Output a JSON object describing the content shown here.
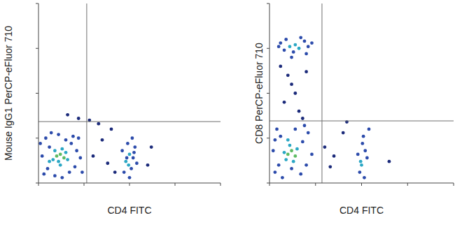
{
  "chart_data": [
    {
      "type": "scatter",
      "x_label": "CD4 FITC",
      "y_label": "Mouse IgG1 PerCP-eFluor 710",
      "xlim": [
        0,
        1000
      ],
      "ylim": [
        0,
        1000
      ],
      "xticks": [
        0,
        250,
        500,
        750,
        1000
      ],
      "yticks": [
        0,
        250,
        500,
        750,
        1000
      ],
      "tick_labels": false,
      "grid": false,
      "marker": "dot",
      "gate_x": 265,
      "gate_y": 342,
      "x": [
        100,
        120,
        140,
        110,
        90,
        130,
        150,
        80,
        120,
        160,
        30,
        50,
        60,
        40,
        70,
        180,
        200,
        210,
        190,
        20,
        170,
        90,
        130,
        230,
        240,
        60,
        150,
        110,
        220,
        10,
        480,
        500,
        510,
        490,
        520,
        470,
        530,
        500,
        540,
        460,
        515,
        495,
        525,
        485,
        300,
        350,
        400,
        330,
        380,
        600,
        620,
        420,
        280,
        220,
        160
      ],
      "values": [
        150,
        160,
        140,
        120,
        180,
        190,
        170,
        130,
        100,
        130,
        50,
        80,
        200,
        250,
        280,
        220,
        90,
        180,
        260,
        150,
        60,
        40,
        30,
        140,
        60,
        120,
        240,
        270,
        250,
        220,
        120,
        160,
        80,
        220,
        140,
        60,
        200,
        30,
        110,
        180,
        250,
        100,
        170,
        140,
        150,
        240,
        300,
        330,
        110,
        100,
        200,
        60,
        350,
        360,
        380
      ],
      "colors": [
        "#5dbb63",
        "#5dbb63",
        "#5dbb63",
        "#2ba7c4",
        "#2ba7c4",
        "#2ba7c4",
        "#2ba7c4",
        "#2ba7c4",
        "#2ba7c4",
        "#2ba7c4",
        "#2c4bab",
        "#2c4bab",
        "#2c4bab",
        "#2c4bab",
        "#2c4bab",
        "#2c4bab",
        "#2c4bab",
        "#2c4bab",
        "#2c4bab",
        "#2c4bab",
        "#2c4bab",
        "#2c4bab",
        "#2c4bab",
        "#2c4bab",
        "#2c4bab",
        "#2ba7c4",
        "#2c4bab",
        "#2c4bab",
        "#2c4bab",
        "#2c4bab",
        "#2ba7c4",
        "#2ba7c4",
        "#2c4bab",
        "#2c4bab",
        "#2c4bab",
        "#2c4bab",
        "#2c4bab",
        "#2c4bab",
        "#2c4bab",
        "#2c4bab",
        "#2c4bab",
        "#2ba7c4",
        "#2c4bab",
        "#2c4bab",
        "#1b2a7a",
        "#1b2a7a",
        "#1b2a7a",
        "#1b2a7a",
        "#1b2a7a",
        "#1b2a7a",
        "#1b2a7a",
        "#1b2a7a",
        "#1b2a7a",
        "#1b2a7a",
        "#1b2a7a"
      ]
    },
    {
      "type": "scatter",
      "x_label": "CD4 FITC",
      "y_label": "CD8 PerCP-eFluor 710",
      "xlim": [
        0,
        1000
      ],
      "ylim": [
        0,
        1000
      ],
      "xticks": [
        0,
        250,
        500,
        750,
        1000
      ],
      "yticks": [
        0,
        250,
        500,
        750,
        1000
      ],
      "tick_labels": false,
      "grid": false,
      "marker": "dot",
      "gate_x": 285,
      "gate_y": 346,
      "x": [
        100,
        120,
        90,
        140,
        110,
        130,
        80,
        150,
        100,
        30,
        50,
        60,
        40,
        180,
        200,
        210,
        20,
        170,
        140,
        230,
        70,
        120,
        190,
        30,
        110,
        140,
        160,
        60,
        90,
        190,
        210,
        80,
        130,
        230,
        50,
        170,
        120,
        200,
        100,
        140,
        80,
        160,
        120,
        200,
        60,
        180,
        500,
        520,
        510,
        490,
        530,
        505,
        515,
        480,
        540,
        495,
        300,
        350,
        400,
        330,
        650,
        420
      ],
      "values": [
        160,
        180,
        130,
        150,
        210,
        120,
        170,
        190,
        240,
        60,
        100,
        260,
        300,
        230,
        100,
        280,
        180,
        50,
        300,
        160,
        30,
        80,
        320,
        240,
        760,
        770,
        750,
        780,
        800,
        790,
        760,
        740,
        730,
        780,
        760,
        810,
        700,
        720,
        600,
        500,
        450,
        400,
        550,
        620,
        650,
        360,
        100,
        180,
        260,
        60,
        140,
        220,
        30,
        160,
        300,
        120,
        200,
        150,
        280,
        90,
        120,
        340
      ],
      "colors": [
        "#5dbb63",
        "#5dbb63",
        "#2ba7c4",
        "#5dbb63",
        "#2ba7c4",
        "#2ba7c4",
        "#2ba7c4",
        "#2ba7c4",
        "#2ba7c4",
        "#2c4bab",
        "#2c4bab",
        "#2c4bab",
        "#2c4bab",
        "#2c4bab",
        "#2c4bab",
        "#2c4bab",
        "#2c4bab",
        "#2c4bab",
        "#2c4bab",
        "#2c4bab",
        "#2c4bab",
        "#2c4bab",
        "#2c4bab",
        "#2c4bab",
        "#2ba7c4",
        "#2ba7c4",
        "#2ba7c4",
        "#2c4bab",
        "#2c4bab",
        "#2c4bab",
        "#2c4bab",
        "#2c4bab",
        "#2c4bab",
        "#2c4bab",
        "#2c4bab",
        "#2c4bab",
        "#2c4bab",
        "#2c4bab",
        "#1b2a7a",
        "#1b2a7a",
        "#1b2a7a",
        "#1b2a7a",
        "#1b2a7a",
        "#1b2a7a",
        "#1b2a7a",
        "#1b2a7a",
        "#2ba7c4",
        "#2c4bab",
        "#2c4bab",
        "#2c4bab",
        "#2c4bab",
        "#2c4bab",
        "#2c4bab",
        "#2c4bab",
        "#2c4bab",
        "#2ba7c4",
        "#1b2a7a",
        "#1b2a7a",
        "#1b2a7a",
        "#1b2a7a",
        "#1b2a7a",
        "#1b2a7a"
      ]
    }
  ]
}
